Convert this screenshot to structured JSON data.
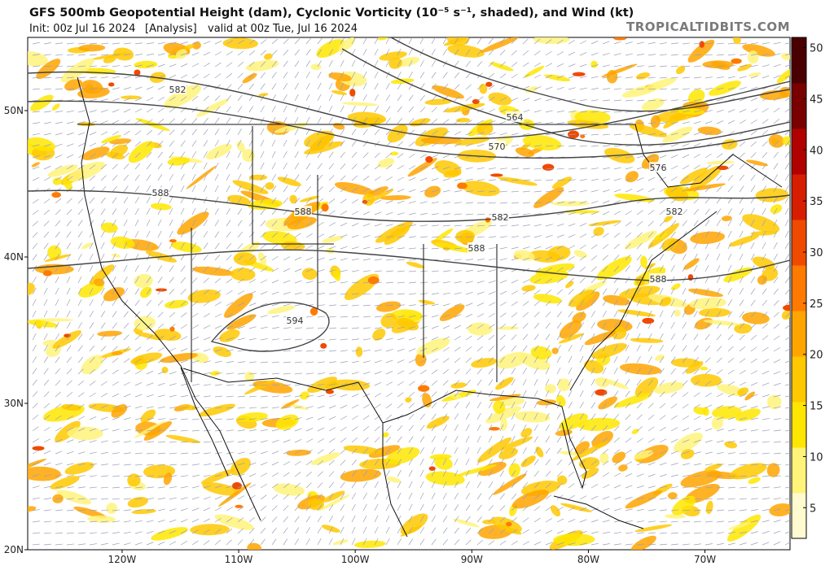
{
  "header": {
    "title": "GFS 500mb Geopotential Height (dam), Cyclonic Vorticity (10⁻⁵ s⁻¹, shaded), and Wind (kt)",
    "init": "Init: 00z Jul 16 2024",
    "run_type": "[Analysis]",
    "valid": "valid at 00z Tue, Jul 16 2024",
    "credit": "TROPICALTIDBITS.COM"
  },
  "map": {
    "latlim": [
      20,
      55
    ],
    "lonlim": [
      -128.1,
      -62.7
    ],
    "lat_ticks": [
      {
        "value": 20,
        "label": "20N"
      },
      {
        "value": 30,
        "label": "30N"
      },
      {
        "value": 40,
        "label": "40N"
      },
      {
        "value": 50,
        "label": "50N"
      }
    ],
    "lon_ticks": [
      {
        "value": -120,
        "label": "120W"
      },
      {
        "value": -110,
        "label": "110W"
      },
      {
        "value": -100,
        "label": "100W"
      },
      {
        "value": -90,
        "label": "90W"
      },
      {
        "value": -80,
        "label": "80W"
      },
      {
        "value": -70,
        "label": "70W"
      }
    ],
    "contour_labels": [
      "582",
      "588",
      "588",
      "594",
      "564",
      "570",
      "582",
      "576",
      "582",
      "588",
      "588"
    ]
  },
  "colorbar": {
    "range": [
      2,
      51
    ],
    "ticks": [
      5,
      10,
      15,
      20,
      25,
      30,
      35,
      40,
      45,
      50
    ],
    "colors": [
      "#fffbd0",
      "#fff37a",
      "#ffe600",
      "#ffc800",
      "#ffa500",
      "#ff7a00",
      "#f04a00",
      "#d71e00",
      "#b00000",
      "#7a0000",
      "#4a0000"
    ]
  }
}
